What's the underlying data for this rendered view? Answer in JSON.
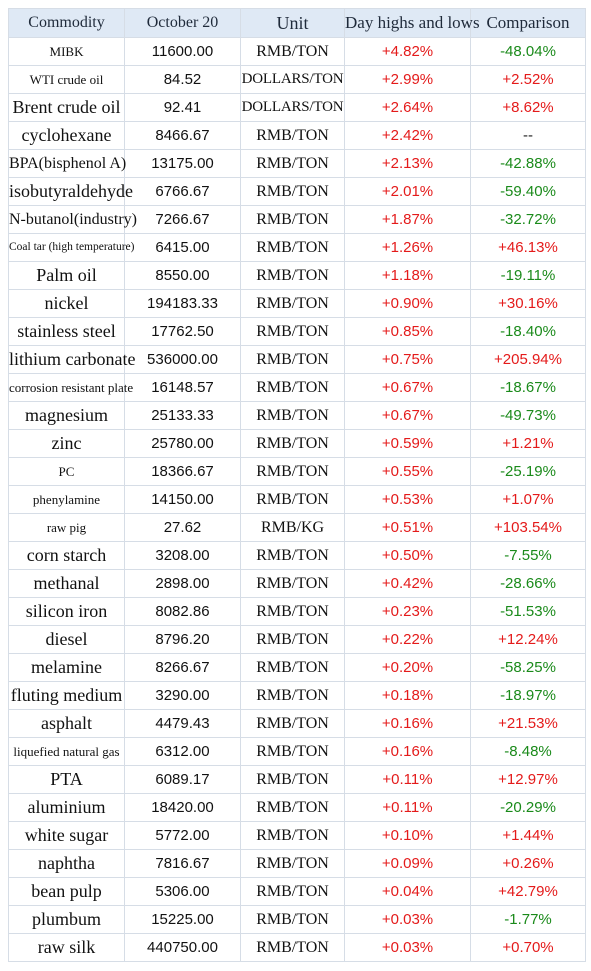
{
  "headers": {
    "commodity": "Commodity",
    "date": "October 20",
    "unit": "Unit",
    "day": "Day highs and lows",
    "comparison": "Comparison"
  },
  "colors": {
    "up": "#e41a1a",
    "down": "#1a8a1a",
    "header_bg": "#dfe9f5"
  },
  "rows": [
    {
      "name": "MIBK",
      "price": "11600.00",
      "unit": "RMB/TON",
      "day": "+4.82%",
      "comparison": "-48.04%"
    },
    {
      "name": "WTI crude oil",
      "price": "84.52",
      "unit": "DOLLARS/TON",
      "day": "+2.99%",
      "comparison": "+2.52%"
    },
    {
      "name": "Brent crude oil",
      "price": "92.41",
      "unit": "DOLLARS/TON",
      "day": "+2.64%",
      "comparison": "+8.62%"
    },
    {
      "name": "cyclohexane",
      "price": "8466.67",
      "unit": "RMB/TON",
      "day": "+2.42%",
      "comparison": "--"
    },
    {
      "name": "BPA(bisphenol A)",
      "price": "13175.00",
      "unit": "RMB/TON",
      "day": "+2.13%",
      "comparison": "-42.88%"
    },
    {
      "name": "isobutyraldehyde",
      "price": "6766.67",
      "unit": "RMB/TON",
      "day": "+2.01%",
      "comparison": "-59.40%"
    },
    {
      "name": "N-butanol(industry)",
      "price": "7266.67",
      "unit": "RMB/TON",
      "day": "+1.87%",
      "comparison": "-32.72%"
    },
    {
      "name": "Coal tar (high temperature)",
      "price": "6415.00",
      "unit": "RMB/TON",
      "day": "+1.26%",
      "comparison": "+46.13%"
    },
    {
      "name": "Palm oil",
      "price": "8550.00",
      "unit": "RMB/TON",
      "day": "+1.18%",
      "comparison": "-19.11%"
    },
    {
      "name": "nickel",
      "price": "194183.33",
      "unit": "RMB/TON",
      "day": "+0.90%",
      "comparison": "+30.16%"
    },
    {
      "name": "stainless steel",
      "price": "17762.50",
      "unit": "RMB/TON",
      "day": "+0.85%",
      "comparison": "-18.40%"
    },
    {
      "name": "lithium carbonate",
      "price": "536000.00",
      "unit": "RMB/TON",
      "day": "+0.75%",
      "comparison": "+205.94%"
    },
    {
      "name": "corrosion resistant plate",
      "price": "16148.57",
      "unit": "RMB/TON",
      "day": "+0.67%",
      "comparison": "-18.67%"
    },
    {
      "name": "magnesium",
      "price": "25133.33",
      "unit": "RMB/TON",
      "day": "+0.67%",
      "comparison": "-49.73%"
    },
    {
      "name": "zinc",
      "price": "25780.00",
      "unit": "RMB/TON",
      "day": "+0.59%",
      "comparison": "+1.21%"
    },
    {
      "name": "PC",
      "price": "18366.67",
      "unit": "RMB/TON",
      "day": "+0.55%",
      "comparison": "-25.19%"
    },
    {
      "name": "phenylamine",
      "price": "14150.00",
      "unit": "RMB/TON",
      "day": "+0.53%",
      "comparison": "+1.07%"
    },
    {
      "name": "raw pig",
      "price": "27.62",
      "unit": "RMB/KG",
      "day": "+0.51%",
      "comparison": "+103.54%"
    },
    {
      "name": "corn starch",
      "price": "3208.00",
      "unit": "RMB/TON",
      "day": "+0.50%",
      "comparison": "-7.55%"
    },
    {
      "name": "methanal",
      "price": "2898.00",
      "unit": "RMB/TON",
      "day": "+0.42%",
      "comparison": "-28.66%"
    },
    {
      "name": "silicon iron",
      "price": "8082.86",
      "unit": "RMB/TON",
      "day": "+0.23%",
      "comparison": "-51.53%"
    },
    {
      "name": "diesel",
      "price": "8796.20",
      "unit": "RMB/TON",
      "day": "+0.22%",
      "comparison": "+12.24%"
    },
    {
      "name": "melamine",
      "price": "8266.67",
      "unit": "RMB/TON",
      "day": "+0.20%",
      "comparison": "-58.25%"
    },
    {
      "name": "fluting medium",
      "price": "3290.00",
      "unit": "RMB/TON",
      "day": "+0.18%",
      "comparison": "-18.97%"
    },
    {
      "name": "asphalt",
      "price": "4479.43",
      "unit": "RMB/TON",
      "day": "+0.16%",
      "comparison": "+21.53%"
    },
    {
      "name": "liquefied natural gas",
      "price": "6312.00",
      "unit": "RMB/TON",
      "day": "+0.16%",
      "comparison": "-8.48%"
    },
    {
      "name": "PTA",
      "price": "6089.17",
      "unit": "RMB/TON",
      "day": "+0.11%",
      "comparison": "+12.97%"
    },
    {
      "name": "aluminium",
      "price": "18420.00",
      "unit": "RMB/TON",
      "day": "+0.11%",
      "comparison": "-20.29%"
    },
    {
      "name": "white sugar",
      "price": "5772.00",
      "unit": "RMB/TON",
      "day": "+0.10%",
      "comparison": "+1.44%"
    },
    {
      "name": "naphtha",
      "price": "7816.67",
      "unit": "RMB/TON",
      "day": "+0.09%",
      "comparison": "+0.26%"
    },
    {
      "name": "bean pulp",
      "price": "5306.00",
      "unit": "RMB/TON",
      "day": "+0.04%",
      "comparison": "+42.79%"
    },
    {
      "name": "plumbum",
      "price": "15225.00",
      "unit": "RMB/TON",
      "day": "+0.03%",
      "comparison": "-1.77%"
    },
    {
      "name": "raw silk",
      "price": "440750.00",
      "unit": "RMB/TON",
      "day": "+0.03%",
      "comparison": "+0.70%"
    }
  ]
}
